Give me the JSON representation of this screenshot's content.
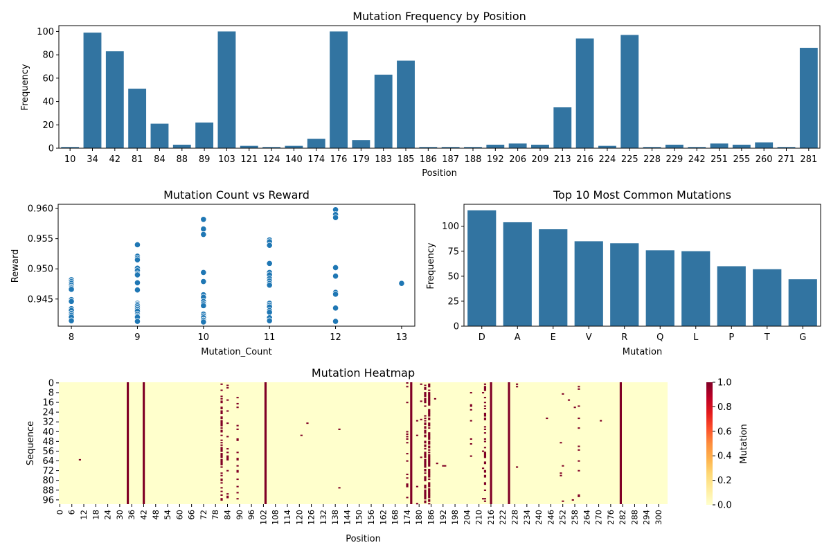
{
  "chart_data": [
    {
      "type": "bar",
      "title": "Mutation Frequency by Position",
      "xlabel": "Position",
      "ylabel": "Frequency",
      "ylim": [
        0,
        105
      ],
      "yticks": [
        0,
        20,
        40,
        60,
        80,
        100
      ],
      "categories": [
        "10",
        "34",
        "42",
        "81",
        "84",
        "88",
        "89",
        "103",
        "121",
        "124",
        "140",
        "174",
        "176",
        "179",
        "183",
        "185",
        "186",
        "187",
        "188",
        "192",
        "206",
        "209",
        "213",
        "216",
        "224",
        "225",
        "228",
        "229",
        "242",
        "251",
        "255",
        "260",
        "271",
        "281"
      ],
      "values": [
        1,
        99,
        83,
        51,
        21,
        3,
        22,
        100,
        2,
        1,
        2,
        8,
        100,
        7,
        63,
        75,
        1,
        1,
        1,
        3,
        4,
        3,
        35,
        94,
        2,
        97,
        1,
        3,
        1,
        4,
        3,
        5,
        1,
        86
      ],
      "color": "#3274a1"
    },
    {
      "type": "scatter",
      "title": "Mutation Count vs Reward",
      "xlabel": "Mutation_Count",
      "ylabel": "Reward",
      "xlim": [
        7.8,
        13.2
      ],
      "ylim": [
        0.9405,
        0.9607
      ],
      "xticks": [
        8,
        9,
        10,
        11,
        12,
        13
      ],
      "yticks": [
        0.945,
        0.95,
        0.955,
        0.96
      ],
      "yticklabels": [
        "0.945",
        "0.950",
        "0.955",
        "0.960"
      ],
      "color": "#1f77b4",
      "points": [
        [
          8,
          0.9482
        ],
        [
          8,
          0.9479
        ],
        [
          8,
          0.9476
        ],
        [
          8,
          0.9473
        ],
        [
          8,
          0.947
        ],
        [
          8,
          0.9468
        ],
        [
          8,
          0.9466
        ],
        [
          8,
          0.9449
        ],
        [
          8,
          0.9446
        ],
        [
          8,
          0.9434
        ],
        [
          8,
          0.9431
        ],
        [
          8,
          0.9426
        ],
        [
          8,
          0.9423
        ],
        [
          8,
          0.942
        ],
        [
          8,
          0.9414
        ],
        [
          9,
          0.954
        ],
        [
          9,
          0.9521
        ],
        [
          9,
          0.9518
        ],
        [
          9,
          0.9515
        ],
        [
          9,
          0.9501
        ],
        [
          9,
          0.9497
        ],
        [
          9,
          0.9492
        ],
        [
          9,
          0.949
        ],
        [
          9,
          0.9477
        ],
        [
          9,
          0.9465
        ],
        [
          9,
          0.9443
        ],
        [
          9,
          0.9441
        ],
        [
          9,
          0.9439
        ],
        [
          9,
          0.9436
        ],
        [
          9,
          0.9433
        ],
        [
          9,
          0.943
        ],
        [
          9,
          0.9425
        ],
        [
          9,
          0.9422
        ],
        [
          9,
          0.942
        ],
        [
          9,
          0.9413
        ],
        [
          10,
          0.9582
        ],
        [
          10,
          0.9566
        ],
        [
          10,
          0.9557
        ],
        [
          10,
          0.9494
        ],
        [
          10,
          0.9479
        ],
        [
          10,
          0.9457
        ],
        [
          10,
          0.9453
        ],
        [
          10,
          0.9446
        ],
        [
          10,
          0.9442
        ],
        [
          10,
          0.9439
        ],
        [
          10,
          0.9425
        ],
        [
          10,
          0.9422
        ],
        [
          10,
          0.9419
        ],
        [
          10,
          0.9415
        ],
        [
          10,
          0.9412
        ],
        [
          11,
          0.9548
        ],
        [
          11,
          0.9545
        ],
        [
          11,
          0.9539
        ],
        [
          11,
          0.9509
        ],
        [
          11,
          0.9494
        ],
        [
          11,
          0.949
        ],
        [
          11,
          0.9484
        ],
        [
          11,
          0.948
        ],
        [
          11,
          0.9476
        ],
        [
          11,
          0.9473
        ],
        [
          11,
          0.9443
        ],
        [
          11,
          0.944
        ],
        [
          11,
          0.9437
        ],
        [
          11,
          0.9431
        ],
        [
          11,
          0.9428
        ],
        [
          11,
          0.9419
        ],
        [
          11,
          0.9414
        ],
        [
          12,
          0.9598
        ],
        [
          12,
          0.959
        ],
        [
          12,
          0.9585
        ],
        [
          12,
          0.9502
        ],
        [
          12,
          0.9488
        ],
        [
          12,
          0.9461
        ],
        [
          12,
          0.9458
        ],
        [
          12,
          0.9435
        ],
        [
          12,
          0.9413
        ],
        [
          13,
          0.9476
        ]
      ]
    },
    {
      "type": "bar",
      "title": "Top 10 Most Common Mutations",
      "xlabel": "Mutation",
      "ylabel": "Frequency",
      "ylim": [
        0,
        122
      ],
      "yticks": [
        0,
        25,
        50,
        75,
        100
      ],
      "categories": [
        "D",
        "A",
        "E",
        "V",
        "R",
        "Q",
        "L",
        "P",
        "T",
        "G"
      ],
      "values": [
        116,
        104,
        97,
        85,
        83,
        76,
        75,
        60,
        57,
        47
      ],
      "color": "#3274a1"
    },
    {
      "type": "heatmap",
      "title": "Mutation Heatmap",
      "xlabel": "Position",
      "ylabel": "Sequence",
      "n_rows": 100,
      "n_cols": 305,
      "xticks": [
        0,
        6,
        12,
        18,
        24,
        30,
        36,
        42,
        48,
        54,
        60,
        66,
        72,
        78,
        84,
        90,
        96,
        102,
        108,
        114,
        120,
        126,
        132,
        138,
        144,
        150,
        156,
        162,
        168,
        174,
        180,
        186,
        192,
        198,
        204,
        210,
        216,
        222,
        228,
        234,
        240,
        246,
        252,
        258,
        264,
        270,
        276,
        282,
        288,
        294,
        300
      ],
      "yticks": [
        0,
        8,
        16,
        24,
        32,
        40,
        48,
        56,
        64,
        72,
        80,
        88,
        96
      ],
      "colorbar": {
        "label": "Mutation",
        "ticks": [
          "0.0",
          "0.2",
          "0.4",
          "0.6",
          "0.8",
          "1.0"
        ],
        "min": 0,
        "max": 1
      },
      "low_color": "#ffffcc",
      "high_color": "#800026",
      "full_columns": [
        34,
        42,
        103,
        176,
        216,
        225,
        281
      ],
      "partial_columns": [
        {
          "col": 81,
          "frequency": 0.51
        },
        {
          "col": 84,
          "frequency": 0.21
        },
        {
          "col": 89,
          "frequency": 0.22
        },
        {
          "col": 183,
          "frequency": 0.63
        },
        {
          "col": 185,
          "frequency": 0.75
        },
        {
          "col": 213,
          "frequency": 0.35
        },
        {
          "col": 179,
          "frequency": 0.07
        },
        {
          "col": 174,
          "frequency": 0.08
        },
        {
          "col": 260,
          "frequency": 0.05
        },
        {
          "col": 251,
          "frequency": 0.04
        },
        {
          "col": 206,
          "frequency": 0.04
        }
      ],
      "scattered_cells": [
        [
          63,
          10
        ],
        [
          33,
          124
        ],
        [
          43,
          121
        ],
        [
          38,
          140
        ],
        [
          86,
          140
        ],
        [
          1,
          181
        ],
        [
          15,
          181
        ],
        [
          61,
          181
        ],
        [
          30,
          181
        ],
        [
          66,
          189
        ],
        [
          68,
          192
        ],
        [
          68,
          193
        ],
        [
          8,
          206
        ],
        [
          18,
          206
        ],
        [
          60,
          206
        ],
        [
          31,
          206
        ],
        [
          8,
          212
        ],
        [
          56,
          212
        ],
        [
          70,
          212
        ],
        [
          95,
          212
        ],
        [
          1,
          229
        ],
        [
          3,
          229
        ],
        [
          69,
          229
        ],
        [
          9,
          252
        ],
        [
          68,
          252
        ],
        [
          97,
          252
        ],
        [
          96,
          257
        ],
        [
          14,
          255
        ],
        [
          20,
          258
        ],
        [
          5,
          260
        ],
        [
          29,
          260
        ],
        [
          52,
          260
        ],
        [
          93,
          260
        ],
        [
          31,
          271
        ],
        [
          29,
          244
        ],
        [
          13,
          188
        ]
      ]
    }
  ]
}
